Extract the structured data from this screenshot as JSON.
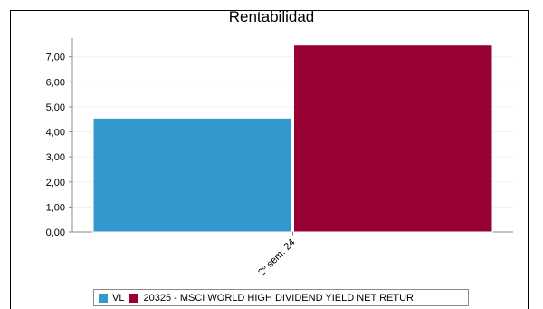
{
  "colors": {
    "series_vl": "#3399cc",
    "series_benchmark": "#990033",
    "grid": "#f0f0f0",
    "axis": "#8a8a8a"
  },
  "chart_data": {
    "type": "bar",
    "title": "Rentabilidad",
    "categories": [
      "2º sem. 24"
    ],
    "yticks": [
      "0,00",
      "1,00",
      "2,00",
      "3,00",
      "4,00",
      "5,00",
      "6,00",
      "7,00"
    ],
    "ylim": [
      0,
      7.75
    ],
    "grid": true,
    "legend_position": "bottom",
    "series": [
      {
        "name": "VL",
        "color": "#3399cc",
        "values": [
          4.55
        ]
      },
      {
        "name": "20325 - MSCI WORLD HIGH DIVIDEND YIELD NET RETUR",
        "color": "#990033",
        "values": [
          7.47
        ]
      }
    ]
  }
}
